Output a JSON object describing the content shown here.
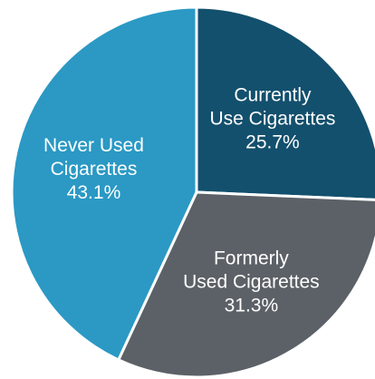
{
  "chart_data": {
    "type": "pie",
    "title": "",
    "start_angle_deg": 0,
    "direction": "clockwise",
    "slices": [
      {
        "label_lines": [
          "Currently",
          "Use Cigarettes"
        ],
        "value_label": "25.7%",
        "value": 25.7,
        "color": "#13506d"
      },
      {
        "label_lines": [
          "Formerly",
          "Used Cigarettes"
        ],
        "value_label": "31.3%",
        "value": 31.3,
        "color": "#5c6167"
      },
      {
        "label_lines": [
          "Never Used",
          "Cigarettes"
        ],
        "value_label": "43.1%",
        "value": 43.1,
        "color": "#2b99c4"
      }
    ],
    "legend": "none"
  }
}
